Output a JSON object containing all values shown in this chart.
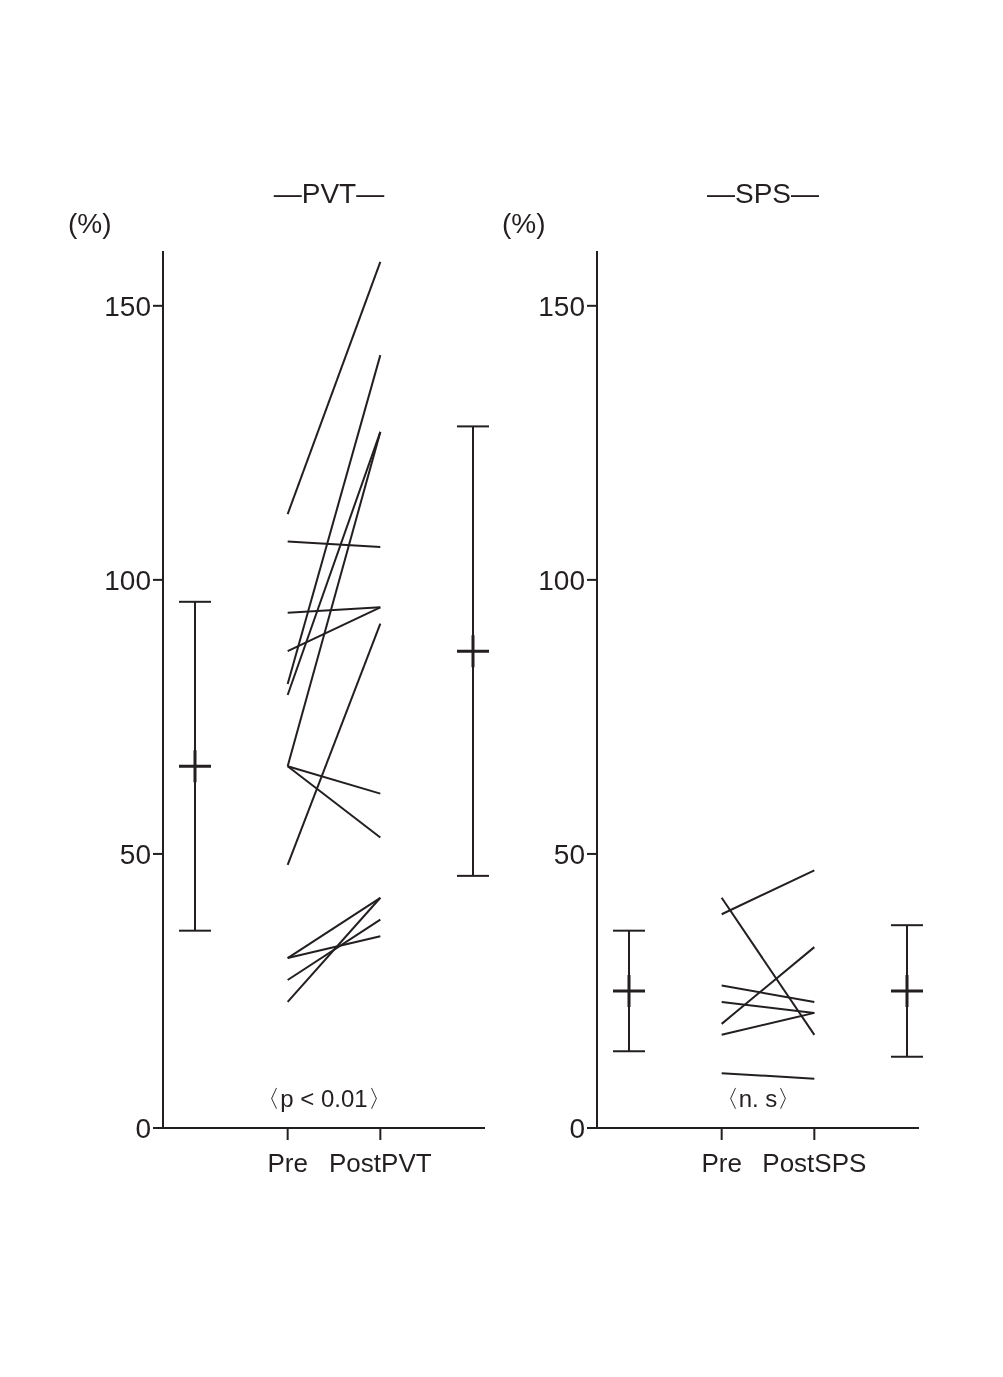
{
  "chart_data": [
    {
      "type": "line",
      "title": "—PVT—",
      "ylabel": "(%)",
      "categories": [
        null,
        "Pre",
        "PostPVT",
        null
      ],
      "ylim": [
        0,
        160
      ],
      "yticks": [
        0,
        50,
        100,
        150
      ],
      "grid": false,
      "annotations": [
        "〈p < 0.01〉"
      ],
      "series": [
        {
          "color": "#231f20",
          "values": [
            null,
            112,
            158,
            null
          ]
        },
        {
          "color": "#231f20",
          "values": [
            null,
            107,
            106,
            null
          ]
        },
        {
          "color": "#231f20",
          "values": [
            null,
            94,
            95,
            null
          ]
        },
        {
          "color": "#231f20",
          "values": [
            null,
            87,
            95,
            null
          ]
        },
        {
          "color": "#231f20",
          "values": [
            null,
            81,
            141,
            null
          ]
        },
        {
          "color": "#231f20",
          "values": [
            null,
            79,
            127,
            null
          ]
        },
        {
          "color": "#231f20",
          "values": [
            null,
            66,
            127,
            null
          ]
        },
        {
          "color": "#231f20",
          "values": [
            null,
            66,
            61,
            null
          ]
        },
        {
          "color": "#231f20",
          "values": [
            null,
            66,
            53,
            null
          ]
        },
        {
          "color": "#231f20",
          "values": [
            null,
            48,
            92,
            null
          ]
        },
        {
          "color": "#231f20",
          "values": [
            null,
            31,
            42,
            null
          ]
        },
        {
          "color": "#231f20",
          "values": [
            null,
            31,
            35,
            null
          ]
        },
        {
          "color": "#231f20",
          "values": [
            null,
            27,
            38,
            null
          ]
        },
        {
          "color": "#231f20",
          "values": [
            null,
            23,
            42,
            null
          ]
        },
        {
          "type": "scatter",
          "marker": "cross",
          "color": "#231f20",
          "values": [
            66,
            null,
            null,
            87
          ],
          "errors": [
            [
              36,
              96
            ],
            null,
            null,
            [
              46,
              128
            ]
          ]
        }
      ]
    },
    {
      "type": "line",
      "title": "—SPS—",
      "ylabel": "(%)",
      "categories": [
        null,
        "Pre",
        "PostSPS",
        null
      ],
      "ylim": [
        0,
        160
      ],
      "yticks": [
        0,
        50,
        100,
        150
      ],
      "grid": false,
      "annotations": [
        "〈n. s〉"
      ],
      "series": [
        {
          "color": "#231f20",
          "values": [
            null,
            39,
            47,
            null
          ]
        },
        {
          "color": "#231f20",
          "values": [
            null,
            42,
            17,
            null
          ]
        },
        {
          "color": "#231f20",
          "values": [
            null,
            26,
            23,
            null
          ]
        },
        {
          "color": "#231f20",
          "values": [
            null,
            23,
            21,
            null
          ]
        },
        {
          "color": "#231f20",
          "values": [
            null,
            19,
            33,
            null
          ]
        },
        {
          "color": "#231f20",
          "values": [
            null,
            17,
            21,
            null
          ]
        },
        {
          "color": "#231f20",
          "values": [
            null,
            10,
            9,
            null
          ]
        },
        {
          "type": "scatter",
          "marker": "cross",
          "color": "#231f20",
          "values": [
            25,
            null,
            null,
            25
          ],
          "errors": [
            [
              14,
              36
            ],
            null,
            null,
            [
              13,
              37
            ]
          ]
        }
      ]
    }
  ]
}
